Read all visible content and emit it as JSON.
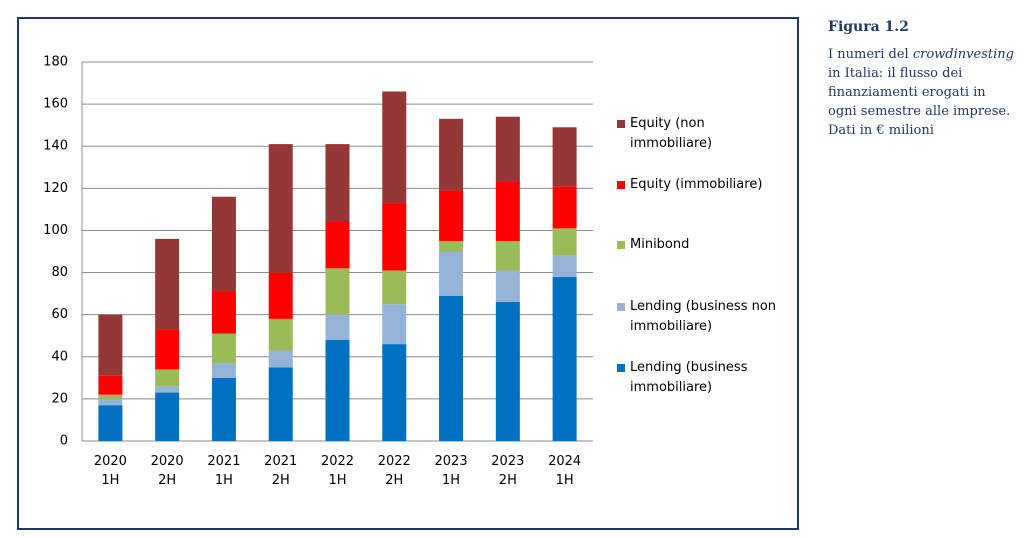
{
  "chart_data": {
    "type": "stacked-bar",
    "categories": [
      "2020 1H",
      "2020 2H",
      "2021 1H",
      "2021 2H",
      "2022 1H",
      "2022 2H",
      "2023 1H",
      "2023 2H",
      "2024 1H"
    ],
    "series": [
      {
        "name": "Lending (business immobiliare)",
        "color": "#0070c0",
        "values": [
          17,
          23,
          30,
          35,
          48,
          46,
          69,
          66,
          78
        ]
      },
      {
        "name": "Lending (business non immobiliare)",
        "color": "#95b3d7",
        "values": [
          3,
          3,
          7,
          8,
          12,
          19,
          21,
          15,
          10
        ]
      },
      {
        "name": "Minibond",
        "color": "#9bbb59",
        "values": [
          2,
          8,
          14,
          15,
          22,
          16,
          5,
          14,
          13
        ]
      },
      {
        "name": "Equity (immobiliare)",
        "color": "#ff0000",
        "values": [
          9,
          19,
          20,
          22,
          22,
          32,
          24,
          28,
          20
        ]
      },
      {
        "name": "Equity (non immobiliare)",
        "color": "#953735",
        "values": [
          29,
          43,
          45,
          61,
          37,
          53,
          34,
          31,
          28
        ]
      }
    ],
    "ylim": [
      0,
      180
    ],
    "yticks": [
      0,
      20,
      40,
      60,
      80,
      100,
      120,
      140,
      160,
      180
    ],
    "grid": true
  },
  "caption": {
    "title": "Figura 1.2",
    "text_before": "I numeri del",
    "text_italic": "crowdinvesting",
    "text_after": "in Italia: il flusso dei finanziamenti erogati in ogni semestre alle imprese.",
    "text_units": "Dati in € milioni"
  }
}
